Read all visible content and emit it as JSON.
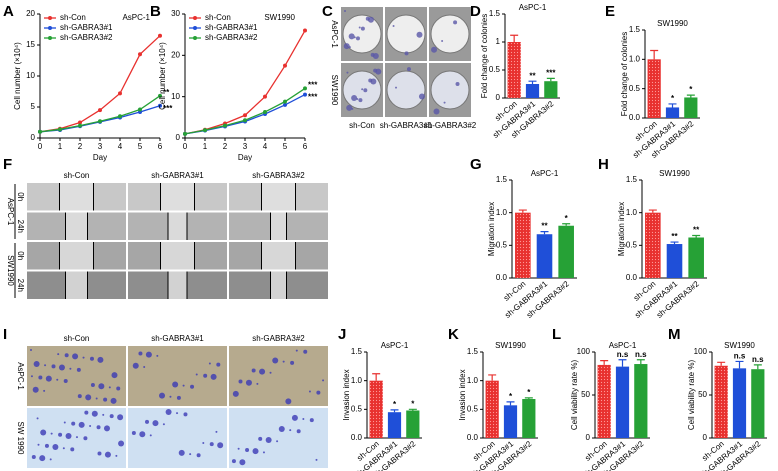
{
  "chart_data": [
    {
      "panel": "A",
      "type": "line",
      "title": "AsPC-1",
      "xlabel": "Day",
      "ylabel": "Cell number (×10⁴)",
      "x": [
        0,
        1,
        2,
        3,
        4,
        5,
        6
      ],
      "xlim": [
        0,
        6
      ],
      "xticks": [
        0,
        1,
        2,
        3,
        4,
        5,
        6
      ],
      "ylim": [
        0,
        20
      ],
      "yticks": [
        0,
        5,
        10,
        15,
        20
      ],
      "series": [
        {
          "name": "sh-Con",
          "color": "#e8312f",
          "values": [
            1,
            1.5,
            2.5,
            4.5,
            7.2,
            13.5,
            16.5
          ]
        },
        {
          "name": "sh-GABRA3#1",
          "color": "#1f4fd8",
          "values": [
            1,
            1.3,
            1.9,
            2.6,
            3.3,
            4.2,
            5.2
          ],
          "annotation": "***"
        },
        {
          "name": "sh-GABRA3#2",
          "color": "#26a136",
          "values": [
            1,
            1.4,
            2,
            2.7,
            3.5,
            4.6,
            6.8
          ],
          "annotation": "**"
        }
      ]
    },
    {
      "panel": "B",
      "type": "line",
      "title": "SW1990",
      "xlabel": "Day",
      "ylabel": "Cell number (×10⁴)",
      "x": [
        0,
        1,
        2,
        3,
        4,
        5,
        6
      ],
      "xlim": [
        0,
        6
      ],
      "xticks": [
        0,
        1,
        2,
        3,
        4,
        5,
        6
      ],
      "ylim": [
        0,
        30
      ],
      "yticks": [
        0,
        10,
        20,
        30
      ],
      "series": [
        {
          "name": "sh-Con",
          "color": "#e8312f",
          "values": [
            1,
            2,
            3.5,
            5.5,
            10,
            17.5,
            26
          ]
        },
        {
          "name": "sh-GABRA3#1",
          "color": "#1f4fd8",
          "values": [
            1,
            1.8,
            2.8,
            4,
            5.8,
            8,
            10.5
          ],
          "annotation": "***"
        },
        {
          "name": "sh-GABRA3#2",
          "color": "#26a136",
          "values": [
            1,
            1.9,
            3,
            4.3,
            6.3,
            8.8,
            12
          ],
          "annotation": "***"
        }
      ]
    },
    {
      "panel": "D",
      "type": "bar",
      "title": "AsPC-1",
      "ylabel": "Fold change of colonies",
      "categories": [
        "sh-Con",
        "sh-GABRA3#1",
        "sh-GABRA3#2"
      ],
      "colors": [
        "#e8312f",
        "#1f4fd8",
        "#26a136"
      ],
      "values": [
        1.0,
        0.25,
        0.3
      ],
      "errors": [
        0.12,
        0.05,
        0.05
      ],
      "significance": [
        null,
        "**",
        "***"
      ],
      "ylim": [
        0,
        1.5
      ],
      "yticks": [
        0,
        0.5,
        1,
        1.5
      ]
    },
    {
      "panel": "E",
      "type": "bar",
      "title": "SW1990",
      "ylabel": "Fold change of colonies",
      "categories": [
        "sh-Con",
        "sh-GABRA3#1",
        "sh-GABRA3#2"
      ],
      "colors": [
        "#e8312f",
        "#1f4fd8",
        "#26a136"
      ],
      "values": [
        1.0,
        0.18,
        0.35
      ],
      "errors": [
        0.15,
        0.06,
        0.04
      ],
      "significance": [
        null,
        "*",
        "*"
      ],
      "ylim": [
        0,
        1.5
      ],
      "yticks": [
        {
          "value": 0,
          "label": "0.0"
        },
        0.5,
        {
          "value": 1,
          "label": "1.0"
        },
        1.5
      ]
    },
    {
      "panel": "G",
      "type": "bar",
      "title": "AsPC-1",
      "ylabel": "Migration index",
      "categories": [
        "sh-Con",
        "sh-GABRA3#1",
        "sh-GABRA3#2"
      ],
      "colors": [
        "#e8312f",
        "#1f4fd8",
        "#26a136"
      ],
      "values": [
        1.0,
        0.67,
        0.8
      ],
      "errors": [
        0.04,
        0.04,
        0.03
      ],
      "significance": [
        null,
        "**",
        "*"
      ],
      "ylim": [
        0,
        1.5
      ],
      "yticks": [
        {
          "value": 0,
          "label": "0.0"
        },
        0.5,
        {
          "value": 1,
          "label": "1.0"
        },
        1.5
      ]
    },
    {
      "panel": "H",
      "type": "bar",
      "title": "SW1990",
      "ylabel": "Migration index",
      "categories": [
        "sh-Con",
        "sh-GABRA3#1",
        "sh-GABRA3#2"
      ],
      "colors": [
        "#e8312f",
        "#1f4fd8",
        "#26a136"
      ],
      "values": [
        1.0,
        0.52,
        0.62
      ],
      "errors": [
        0.04,
        0.03,
        0.03
      ],
      "significance": [
        null,
        "**",
        "**"
      ],
      "ylim": [
        0,
        1.5
      ],
      "yticks": [
        {
          "value": 0,
          "label": "0.0"
        },
        0.5,
        {
          "value": 1,
          "label": "1.0"
        },
        1.5
      ]
    },
    {
      "panel": "J",
      "type": "bar",
      "title": "AsPC-1",
      "ylabel": "Invasion index",
      "categories": [
        "sh-Con",
        "sh-GABRA3#1",
        "sh-GABRA3#2"
      ],
      "colors": [
        "#e8312f",
        "#1f4fd8",
        "#26a136"
      ],
      "values": [
        1.0,
        0.45,
        0.48
      ],
      "errors": [
        0.12,
        0.04,
        0.02
      ],
      "significance": [
        null,
        "*",
        "*"
      ],
      "ylim": [
        0,
        1.5
      ],
      "yticks": [
        {
          "value": 0,
          "label": "0.0"
        },
        0.5,
        {
          "value": 1,
          "label": "1.0"
        },
        1.5
      ]
    },
    {
      "panel": "K",
      "type": "bar",
      "title": "SW1990",
      "ylabel": "Invasion index",
      "categories": [
        "sh-Con",
        "sh-GABRA3#1",
        "sh-GABRA3#2"
      ],
      "colors": [
        "#e8312f",
        "#1f4fd8",
        "#26a136"
      ],
      "values": [
        1.0,
        0.57,
        0.68
      ],
      "errors": [
        0.1,
        0.06,
        0.02
      ],
      "significance": [
        null,
        "*",
        "*"
      ],
      "ylim": [
        0,
        1.5
      ],
      "yticks": [
        {
          "value": 0,
          "label": "0.0"
        },
        0.5,
        {
          "value": 1,
          "label": "1.0"
        },
        1.5
      ]
    },
    {
      "panel": "L",
      "type": "bar",
      "title": "AsPC-1",
      "ylabel": "Cell viability rate %)",
      "categories": [
        "sh-Con",
        "sh-GABRA3#1",
        "sh-GABRA3#2"
      ],
      "colors": [
        "#e8312f",
        "#1f4fd8",
        "#26a136"
      ],
      "values": [
        85,
        83,
        86
      ],
      "errors": [
        5,
        8,
        5
      ],
      "significance": [
        null,
        "n.s",
        "n.s"
      ],
      "ylim": [
        0,
        100
      ],
      "yticks": [
        0,
        50,
        100
      ]
    },
    {
      "panel": "M",
      "type": "bar",
      "title": "SW1990",
      "ylabel": "Cell viability rate %)",
      "categories": [
        "sh-Con",
        "sh-GABRA3#1",
        "sh-GABRA3#2"
      ],
      "colors": [
        "#e8312f",
        "#1f4fd8",
        "#26a136"
      ],
      "values": [
        84,
        81,
        80
      ],
      "errors": [
        4,
        8,
        5
      ],
      "significance": [
        null,
        "n.s",
        "n.s"
      ],
      "ylim": [
        0,
        100
      ],
      "yticks": [
        0,
        50,
        100
      ]
    }
  ],
  "images": [
    {
      "panel": "C",
      "columns": [
        "sh-Con",
        "sh-GABRA3#1",
        "sh-GABRA3#2"
      ],
      "rows": [
        "AsPC-1",
        "SW1990"
      ]
    },
    {
      "panel": "F",
      "columns": [
        "sh-Con",
        "sh-GABRA3#1",
        "sh-GABRA3#2"
      ],
      "rows": [
        "0h",
        "24h",
        "0h",
        "24h"
      ],
      "groups": [
        "AsPC-1",
        "SW1990"
      ]
    },
    {
      "panel": "I",
      "columns": [
        "sh-Con",
        "sh-GABRA3#1",
        "sh-GABRA3#2"
      ],
      "rows": [
        "AsPC-1",
        "SW 1990"
      ]
    }
  ]
}
